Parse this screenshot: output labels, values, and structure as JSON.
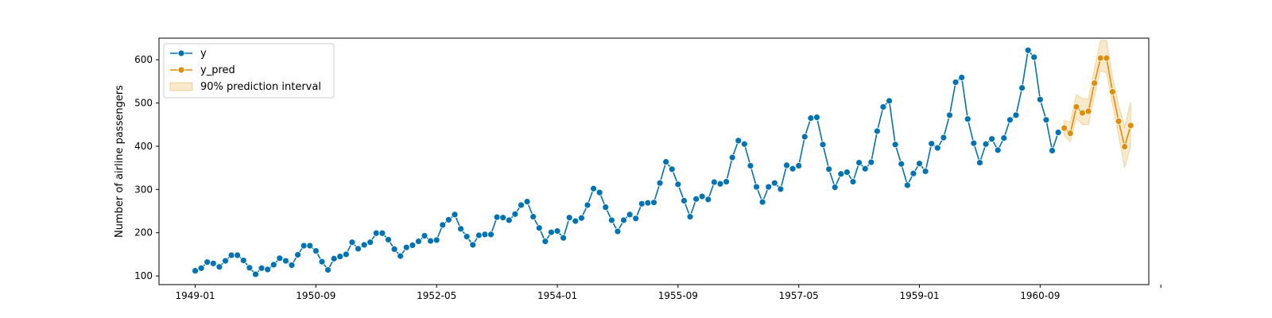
{
  "chart_data": {
    "type": "line",
    "title": "",
    "xlabel": "",
    "ylabel": "Number of airline passengers",
    "x_tick_labels": [
      "1949-01",
      "1950-09",
      "1952-05",
      "1954-01",
      "1955-09",
      "1957-05",
      "1959-01",
      "1960-09",
      ""
    ],
    "y_ticks": [
      100,
      200,
      300,
      400,
      500,
      600
    ],
    "ylim": [
      80,
      650
    ],
    "xlim": [
      "1948-07",
      "1962-03"
    ],
    "grid": false,
    "legend_position": "top-left",
    "legend": [
      {
        "label": "y",
        "kind": "line-marker",
        "color": "#0173b2"
      },
      {
        "label": "y_pred",
        "kind": "line-marker",
        "color": "#de8f05"
      },
      {
        "label": "90% prediction interval",
        "kind": "patch",
        "color": "#de8f05"
      }
    ],
    "series": [
      {
        "name": "y",
        "color": "#0173b2",
        "start": "1949-01",
        "values": [
          112,
          118,
          132,
          129,
          121,
          135,
          148,
          148,
          136,
          119,
          104,
          118,
          115,
          126,
          141,
          135,
          125,
          149,
          170,
          170,
          158,
          133,
          114,
          140,
          145,
          150,
          178,
          163,
          172,
          178,
          199,
          199,
          184,
          162,
          146,
          166,
          171,
          180,
          193,
          181,
          183,
          218,
          230,
          242,
          209,
          191,
          172,
          194,
          196,
          196,
          236,
          235,
          229,
          243,
          264,
          272,
          237,
          211,
          180,
          201,
          204,
          188,
          235,
          227,
          234,
          264,
          302,
          293,
          259,
          229,
          203,
          229,
          242,
          233,
          267,
          269,
          270,
          315,
          364,
          347,
          312,
          274,
          237,
          278,
          284,
          277,
          317,
          313,
          318,
          374,
          413,
          405,
          355,
          306,
          271,
          306,
          315,
          301,
          356,
          348,
          355,
          422,
          465,
          467,
          404,
          347,
          305,
          336,
          340,
          318,
          362,
          348,
          363,
          435,
          491,
          505,
          404,
          359,
          310,
          337,
          360,
          342,
          406,
          396,
          420,
          472,
          548,
          559,
          463,
          407,
          362,
          405,
          417,
          391,
          419,
          461,
          472,
          535,
          622,
          606,
          508,
          461,
          390,
          432
        ]
      },
      {
        "name": "y_pred",
        "color": "#de8f05",
        "start": "1961-01",
        "values": [
          442,
          430,
          491,
          477,
          481,
          546,
          604,
          604,
          526,
          458,
          399,
          448
        ],
        "interval_lower": [
          425,
          410,
          465,
          450,
          450,
          515,
          575,
          570,
          495,
          425,
          350,
          400
        ],
        "interval_upper": [
          460,
          455,
          520,
          510,
          510,
          580,
          645,
          645,
          560,
          495,
          445,
          502
        ]
      }
    ]
  }
}
